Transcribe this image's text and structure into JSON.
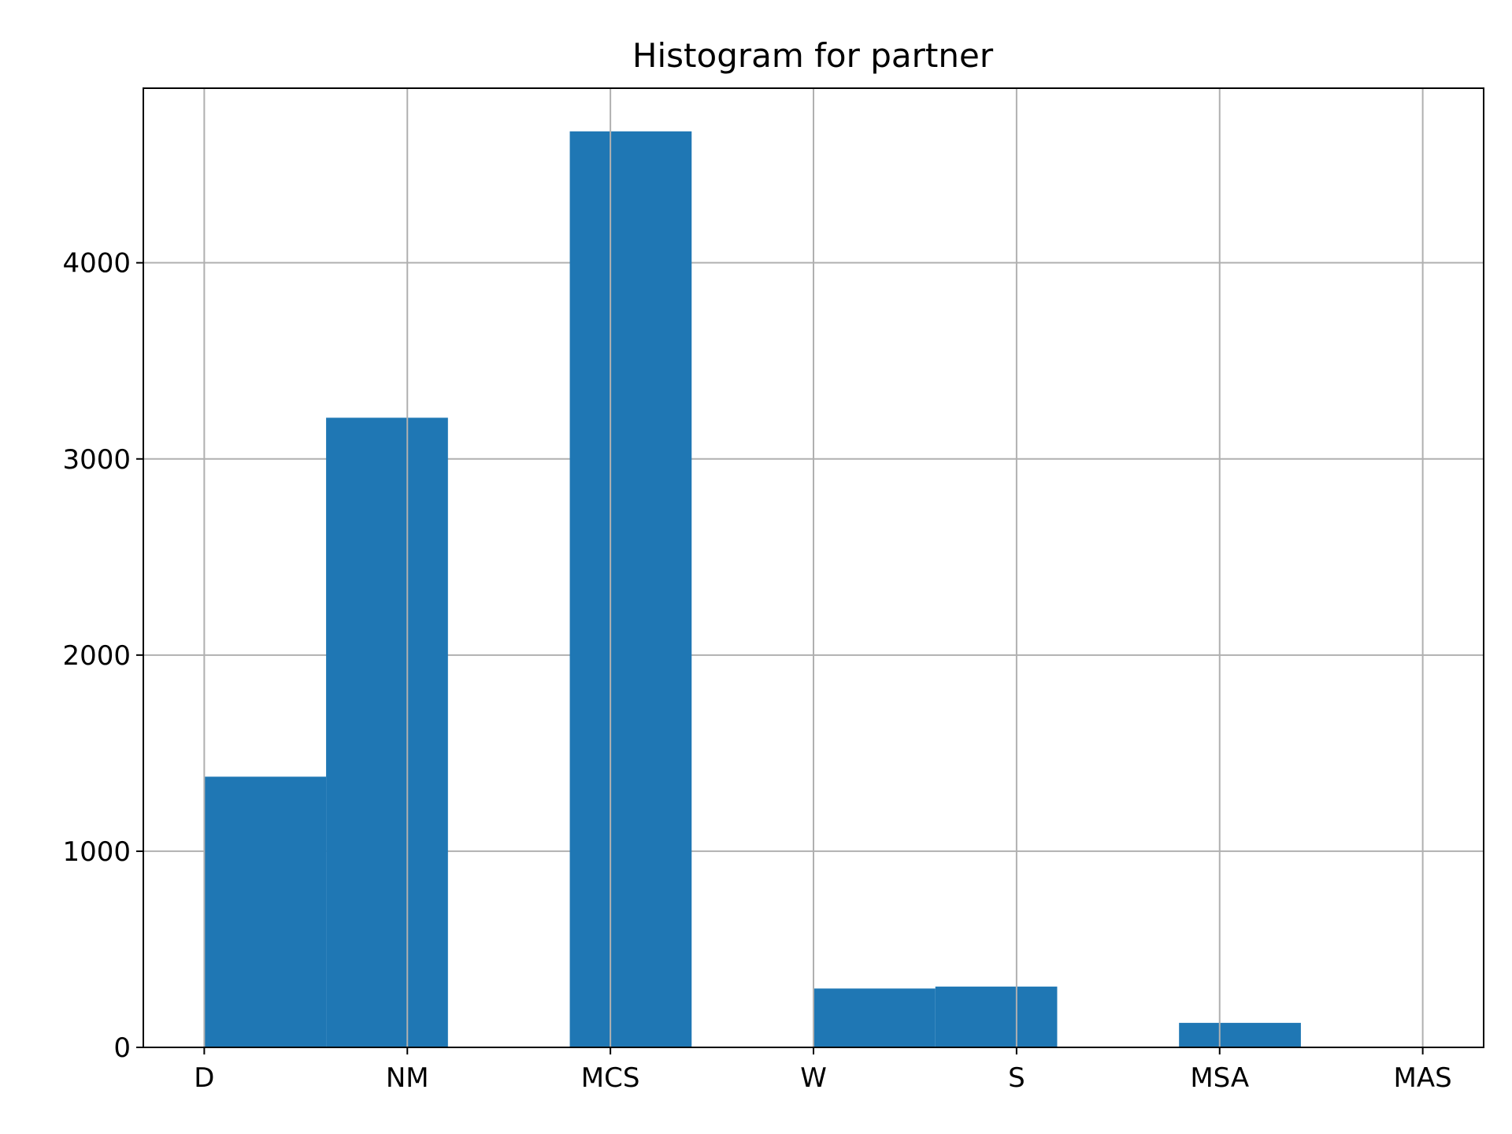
{
  "chart_data": {
    "type": "bar",
    "title": "Histogram for partner",
    "xlabel": "",
    "ylabel": "",
    "categories": [
      "D",
      "NM",
      "MCS",
      "W",
      "S",
      "MSA",
      "MAS"
    ],
    "x_range": [
      -0.3,
      6.3
    ],
    "ylim": [
      0,
      4890
    ],
    "y_ticks": [
      0,
      1000,
      2000,
      3000,
      4000
    ],
    "grid": true,
    "bar_color": "#1f77b4",
    "bins": [
      {
        "start": 0.0,
        "end": 0.6,
        "value": 1380
      },
      {
        "start": 0.6,
        "end": 1.2,
        "value": 3210
      },
      {
        "start": 1.2,
        "end": 1.8,
        "value": 0
      },
      {
        "start": 1.8,
        "end": 2.4,
        "value": 4670
      },
      {
        "start": 2.4,
        "end": 3.0,
        "value": 0
      },
      {
        "start": 3.0,
        "end": 3.6,
        "value": 300
      },
      {
        "start": 3.6,
        "end": 4.2,
        "value": 310
      },
      {
        "start": 4.2,
        "end": 4.8,
        "value": 0
      },
      {
        "start": 4.8,
        "end": 5.4,
        "value": 125
      },
      {
        "start": 5.4,
        "end": 6.0,
        "value": 4
      }
    ]
  }
}
